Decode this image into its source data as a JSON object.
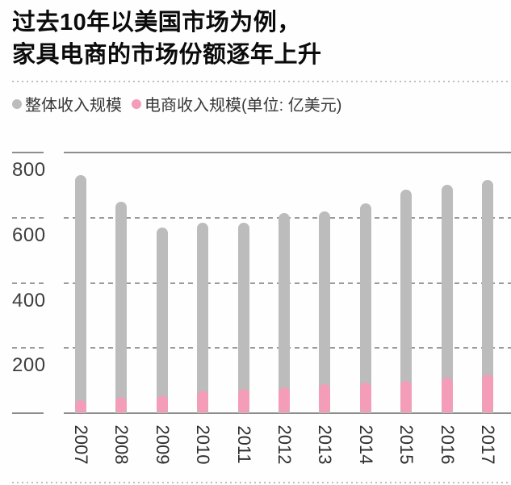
{
  "title": {
    "line1": "过去10年以美国市场为例，",
    "line2": "家具电商的市场份额逐年上升"
  },
  "legend": {
    "items": [
      {
        "label": "整体收入规模",
        "color": "#bcbcbc"
      },
      {
        "label": "电商收入规模",
        "color": "#f39db9"
      }
    ],
    "unit": "(单位: 亿美元)"
  },
  "chart_data": {
    "type": "bar",
    "title": "过去10年以美国市场为例，家具电商的市场份额逐年上升",
    "categories": [
      "2007",
      "2008",
      "2009",
      "2010",
      "2011",
      "2012",
      "2013",
      "2014",
      "2015",
      "2016",
      "2017"
    ],
    "series": [
      {
        "name": "整体收入规模",
        "color": "#bcbcbc",
        "values": [
          730,
          650,
          570,
          585,
          585,
          615,
          620,
          645,
          685,
          700,
          715
        ]
      },
      {
        "name": "电商收入规模",
        "color": "#f39db9",
        "values": [
          40,
          50,
          55,
          70,
          75,
          80,
          90,
          95,
          100,
          110,
          120
        ]
      }
    ],
    "unit": "亿美元",
    "ylim": [
      0,
      800
    ],
    "yticks": [
      200,
      400,
      600,
      800
    ],
    "grid": "horizontal-dashed",
    "legend_position": "top",
    "bar_style": "rounded-overlay",
    "x_label_rotation_deg": 90
  }
}
